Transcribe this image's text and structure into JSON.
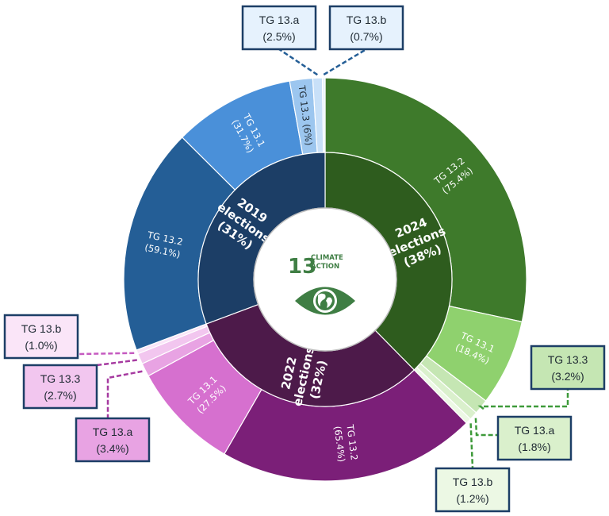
{
  "chart_data": {
    "type": "sunburst",
    "center": {
      "goal_number": "13",
      "goal_line1": "CLIMATE",
      "goal_line2": "ACTION",
      "icon": "eye-globe-icon",
      "color": "#3f7e44"
    },
    "inner_ring": [
      {
        "id": "e2019",
        "line1": "2019",
        "line2": "elections",
        "line3": "(31%)",
        "value": 31,
        "color": "#1c3e66"
      },
      {
        "id": "e2022",
        "line1": "2022",
        "line2": "elections",
        "line3": "(32%)",
        "value": 32,
        "color": "#4d1a4a"
      },
      {
        "id": "e2024",
        "line1": "2024",
        "line2": "elections",
        "line3": "(38%)",
        "value": 38,
        "color": "#2e5c1e"
      }
    ],
    "outer_ring": [
      {
        "parent": "e2024",
        "line1": "TG 13.2",
        "line2": "(75.4%)",
        "value": 75.4,
        "color": "#3e7a2b"
      },
      {
        "parent": "e2024",
        "line1": "TG 13.1",
        "line2": "(18.4%)",
        "value": 18.4,
        "color": "#8fd16e"
      },
      {
        "parent": "e2024",
        "line1": "TG 13.3",
        "line2": "(3.2%)",
        "value": 3.2,
        "color": "#c5e6b3"
      },
      {
        "parent": "e2024",
        "line1": "TG 13.a",
        "line2": "(1.8%)",
        "value": 1.8,
        "color": "#daf0cc"
      },
      {
        "parent": "e2024",
        "line1": "TG 13.b",
        "line2": "(1.2%)",
        "value": 1.2,
        "color": "#ecf8e4"
      },
      {
        "parent": "e2022",
        "line1": "TG 13.2",
        "line2": "(65.4%)",
        "value": 65.4,
        "color": "#7b1f78"
      },
      {
        "parent": "e2022",
        "line1": "TG 13.1",
        "line2": "(27.5%)",
        "value": 27.5,
        "color": "#d670cf"
      },
      {
        "parent": "e2022",
        "line1": "TG 13.a",
        "line2": "(3.4%)",
        "value": 3.4,
        "color": "#e8a3e3"
      },
      {
        "parent": "e2022",
        "line1": "TG 13.3",
        "line2": "(2.7%)",
        "value": 2.7,
        "color": "#f2c6ef"
      },
      {
        "parent": "e2022",
        "line1": "TG 13.b",
        "line2": "(1.0%)",
        "value": 1.0,
        "color": "#fae5f8"
      },
      {
        "parent": "e2019",
        "line1": "TG 13.2",
        "line2": "(59.1%)",
        "value": 59.1,
        "color": "#245e96"
      },
      {
        "parent": "e2019",
        "line1": "TG 13.1",
        "line2": "(31.7%)",
        "value": 31.7,
        "color": "#4a90d9"
      },
      {
        "parent": "e2019",
        "line1": "TG 13.3",
        "line2": "(6%)",
        "value": 6,
        "color": "#9cc6ef"
      },
      {
        "parent": "e2019",
        "line1": "TG 13.a",
        "line2": "(2.5%)",
        "value": 2.5,
        "color": "#c8e0f8"
      },
      {
        "parent": "e2019",
        "line1": "TG 13.b",
        "line2": "(0.7%)",
        "value": 0.7,
        "color": "#e6f2fd"
      }
    ]
  }
}
